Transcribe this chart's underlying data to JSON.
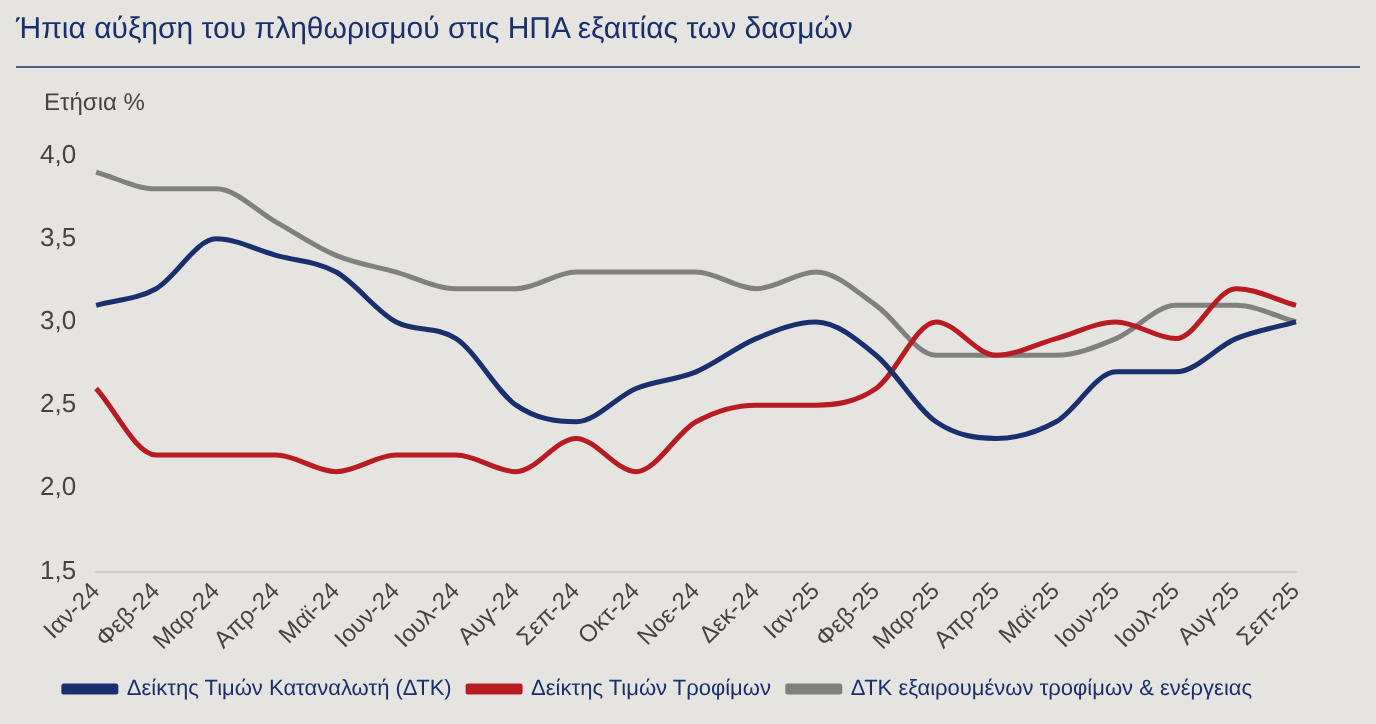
{
  "chart_data": {
    "type": "line",
    "title": "Ήπια αύξηση του πληθωρισμού στις ΗΠΑ εξαιτίας των δασμών",
    "ylabel": "Ετήσια %",
    "categories": [
      "Ιαν-24",
      "Φεβ-24",
      "Μαρ-24",
      "Απρ-24",
      "Μαϊ-24",
      "Ιουν-24",
      "Ιουλ-24",
      "Αυγ-24",
      "Σεπ-24",
      "Οκτ-24",
      "Νοε-24",
      "Δεκ-24",
      "Ιαν-25",
      "Φεβ-25",
      "Μαρ-25",
      "Απρ-25",
      "Μαϊ-25",
      "Ιουν-25",
      "Ιουλ-25",
      "Αυγ-25",
      "Σεπ-25"
    ],
    "series": [
      {
        "name": "Δείκτης Τιμών Καταναλωτή (ΔΤΚ)",
        "color": "#1a2f6e",
        "values": [
          3.1,
          3.2,
          3.5,
          3.4,
          3.3,
          3.0,
          2.9,
          2.5,
          2.4,
          2.6,
          2.7,
          2.9,
          3.0,
          2.8,
          2.4,
          2.3,
          2.4,
          2.7,
          2.7,
          2.9,
          3.0
        ]
      },
      {
        "name": "Δείκτης Τιμών Τροφίμων",
        "color": "#b81c22",
        "values": [
          2.6,
          2.2,
          2.2,
          2.2,
          2.1,
          2.2,
          2.2,
          2.1,
          2.3,
          2.1,
          2.4,
          2.5,
          2.5,
          2.6,
          3.0,
          2.8,
          2.9,
          3.0,
          2.9,
          3.2,
          3.1
        ]
      },
      {
        "name": "ΔΤΚ εξαιρουμένων τροφίμων & ενέργειας",
        "color": "#808080",
        "values": [
          3.9,
          3.8,
          3.8,
          3.6,
          3.4,
          3.3,
          3.2,
          3.2,
          3.3,
          3.3,
          3.3,
          3.2,
          3.3,
          3.1,
          2.8,
          2.8,
          2.8,
          2.9,
          3.1,
          3.1,
          3.0
        ]
      }
    ],
    "ylim": [
      1.5,
      4.0
    ],
    "yticks": [
      {
        "value": 1.5,
        "label": "1,5"
      },
      {
        "value": 2.0,
        "label": "2,0"
      },
      {
        "value": 2.5,
        "label": "2,5"
      },
      {
        "value": 3.0,
        "label": "3,0"
      },
      {
        "value": 3.5,
        "label": "3,5"
      },
      {
        "value": 4.0,
        "label": "4,0"
      }
    ],
    "grid": false,
    "legend": "bottom",
    "marker": "none",
    "line_style": "solid"
  }
}
